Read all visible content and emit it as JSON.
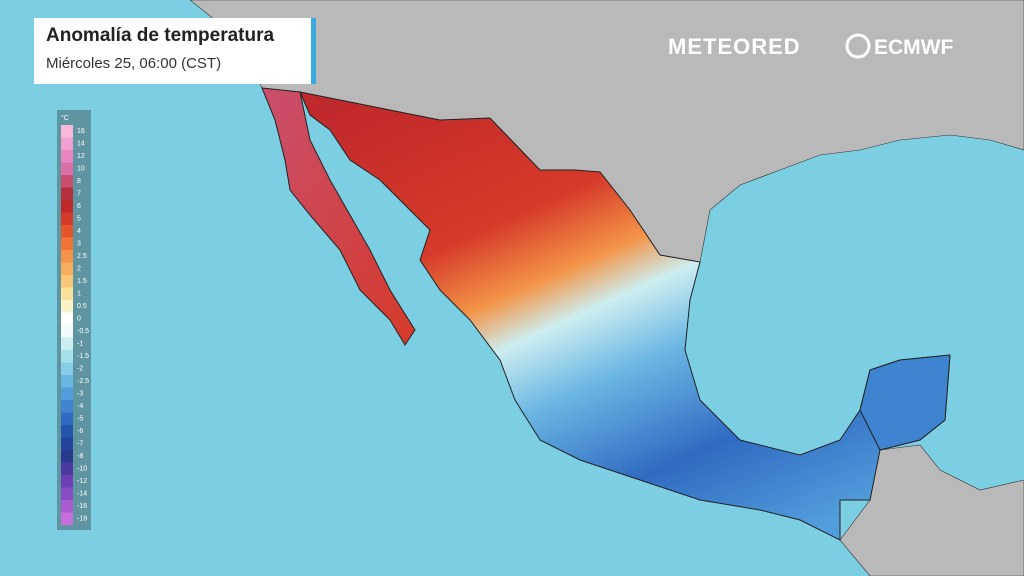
{
  "header": {
    "title": "Anomalía de temperatura",
    "subtitle": "Miércoles 25, 06:00 (CST)"
  },
  "logos": {
    "brand": "METEORED",
    "partner": "ECMWF"
  },
  "legend": {
    "unit": "°C",
    "labels": [
      16,
      14,
      12,
      10,
      8,
      7,
      6,
      5,
      4,
      3,
      2.5,
      2,
      1.5,
      1,
      0.5,
      0,
      -0.5,
      -1,
      -1.5,
      -2,
      -2.5,
      -3,
      -4,
      -5,
      -6,
      -7,
      -8,
      -10,
      -12,
      -14,
      -16,
      -18
    ],
    "colors": [
      "#f7b8dc",
      "#f2a0cf",
      "#e887bf",
      "#dc6fa8",
      "#c94f6c",
      "#b5313f",
      "#c0292b",
      "#d63a2a",
      "#e4552c",
      "#ee7535",
      "#f39447",
      "#f6ae5c",
      "#f8c876",
      "#fbe29a",
      "#fdf3c8",
      "#ffffff",
      "#f4fbfb",
      "#cdeef0",
      "#a6e0ea",
      "#86cde9",
      "#6ab6e3",
      "#529ddb",
      "#3e84d0",
      "#2f6bc2",
      "#2556ae",
      "#22449a",
      "#2a3a8c",
      "#4c3aa0",
      "#6a40b4",
      "#8a4cc4",
      "#a85ccf",
      "#c66ed9"
    ]
  }
}
